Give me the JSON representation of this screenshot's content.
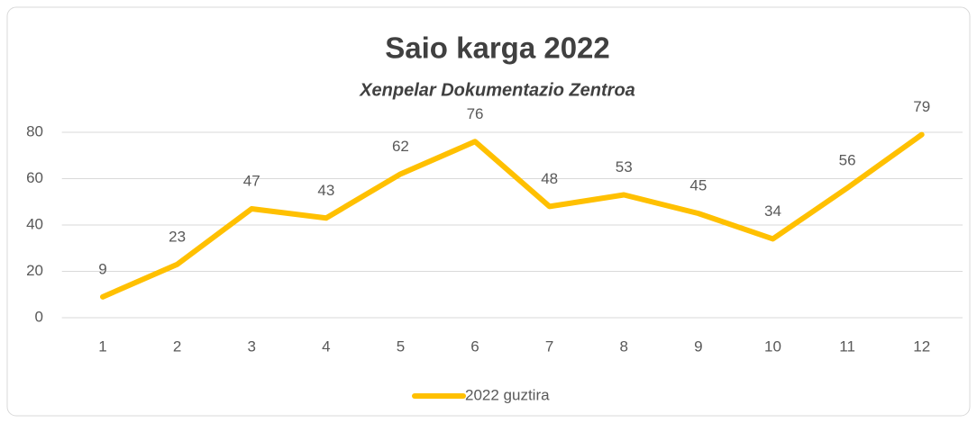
{
  "chart_data": {
    "type": "line",
    "title": "Saio karga 2022",
    "subtitle": "Xenpelar Dokumentazio Zentroa",
    "categories": [
      "1",
      "2",
      "3",
      "4",
      "5",
      "6",
      "7",
      "8",
      "9",
      "10",
      "11",
      "12"
    ],
    "series": [
      {
        "name": "2022 guztira",
        "color": "#ffc000",
        "values": [
          9,
          23,
          47,
          43,
          62,
          76,
          48,
          53,
          45,
          34,
          56,
          79
        ]
      }
    ],
    "ylim": [
      0,
      80
    ],
    "yticks": [
      0,
      20,
      40,
      60,
      80
    ],
    "grid": true,
    "legend": "bottom"
  }
}
